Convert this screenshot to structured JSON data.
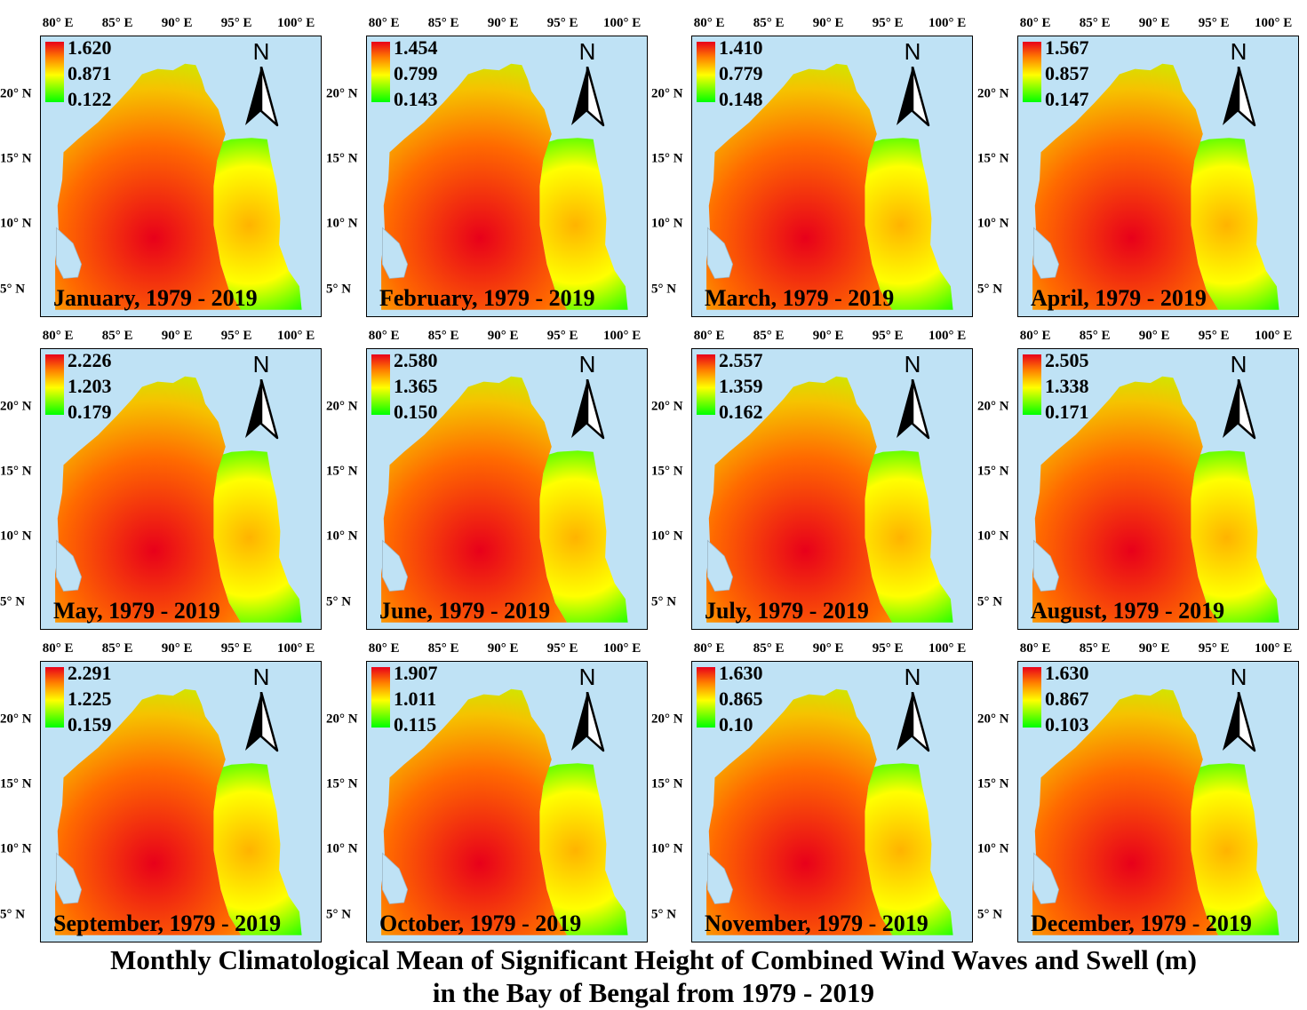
{
  "title": [
    "Monthly Climatological Mean of Significant Height of Combined Wind Waves and Swell (m)",
    "in the Bay of Bengal from 1979 - 2019"
  ],
  "axes": {
    "lon_ticks": [
      "80° E",
      "85° E",
      "90° E",
      "95° E",
      "100° E"
    ],
    "lon_values": [
      80,
      85,
      90,
      95,
      100
    ],
    "lat_ticks": [
      "20° N",
      "15° N",
      "10° N",
      "5° N"
    ],
    "lat_values": [
      20,
      15,
      10,
      5
    ],
    "lon_range": [
      78.5,
      102.0
    ],
    "lat_range": [
      3.0,
      24.5
    ]
  },
  "north_arrow": "N",
  "colors": {
    "high": "#e8001a",
    "mid": "#ffff00",
    "low": "#00ff00",
    "land": "#bfe2f5"
  },
  "panels": [
    {
      "month": "January, 1979 - 2019",
      "max": "1.620",
      "mid": "0.871",
      "min": "0.122"
    },
    {
      "month": "February, 1979 - 2019",
      "max": "1.454",
      "mid": "0.799",
      "min": "0.143"
    },
    {
      "month": "March, 1979 - 2019",
      "max": "1.410",
      "mid": "0.779",
      "min": "0.148"
    },
    {
      "month": "April, 1979 - 2019",
      "max": "1.567",
      "mid": "0.857",
      "min": "0.147"
    },
    {
      "month": "May, 1979 - 2019",
      "max": "2.226",
      "mid": "1.203",
      "min": "0.179"
    },
    {
      "month": "June, 1979 - 2019",
      "max": "2.580",
      "mid": "1.365",
      "min": "0.150"
    },
    {
      "month": "July, 1979 - 2019",
      "max": "2.557",
      "mid": "1.359",
      "min": "0.162"
    },
    {
      "month": "August, 1979 - 2019",
      "max": "2.505",
      "mid": "1.338",
      "min": "0.171"
    },
    {
      "month": "September, 1979 - 2019",
      "max": "2.291",
      "mid": "1.225",
      "min": "0.159"
    },
    {
      "month": "October, 1979 - 2019",
      "max": "1.907",
      "mid": "1.011",
      "min": "0.115"
    },
    {
      "month": "November, 1979 - 2019",
      "max": "1.630",
      "mid": "0.865",
      "min": "0.10"
    },
    {
      "month": "December, 1979 - 2019",
      "max": "1.630",
      "mid": "0.867",
      "min": "0.103"
    }
  ]
}
